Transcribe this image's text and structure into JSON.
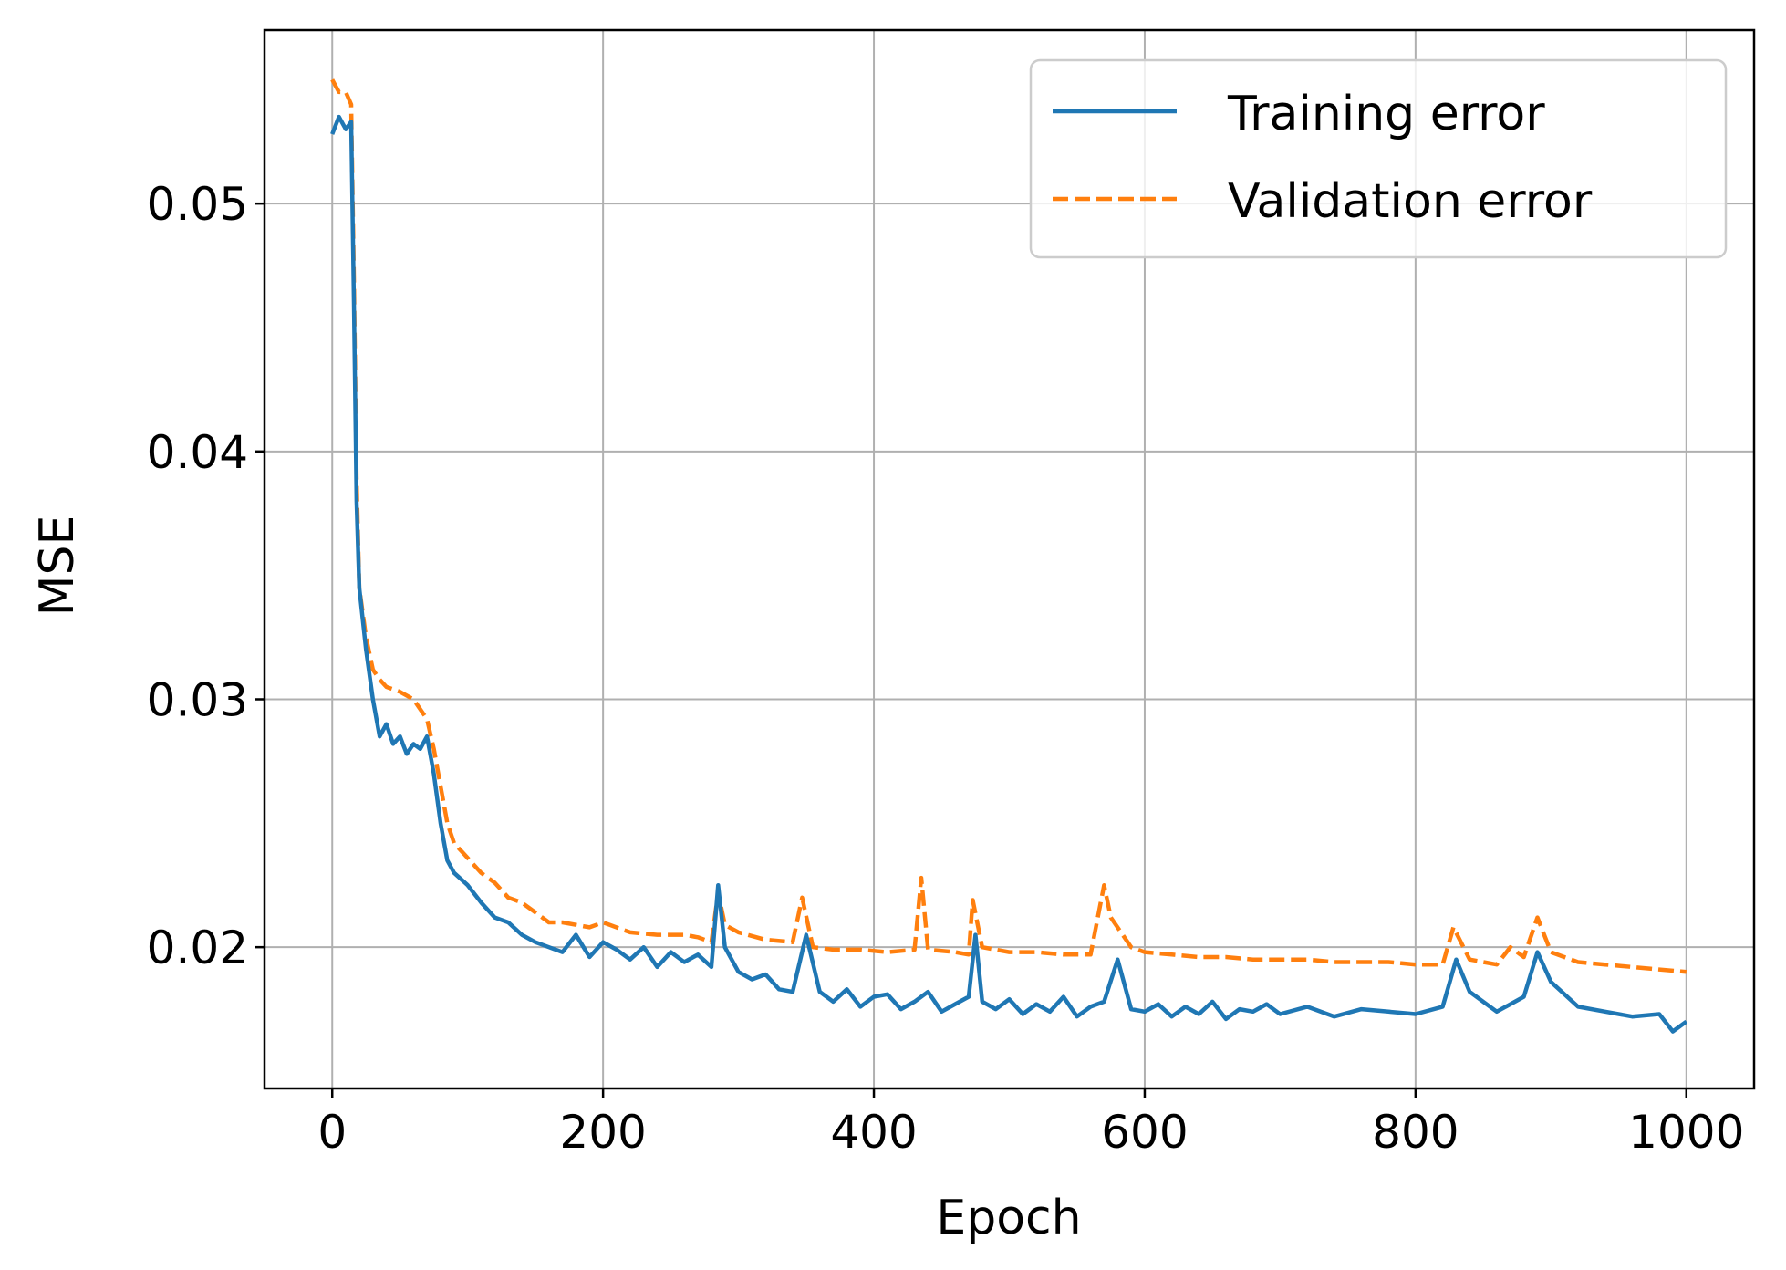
{
  "chart_data": {
    "type": "line",
    "title": "",
    "xlabel": "Epoch",
    "ylabel": "MSE",
    "xlim": [
      -50,
      1050
    ],
    "ylim": [
      0.0143,
      0.057
    ],
    "x_ticks": [
      0,
      200,
      400,
      600,
      800,
      1000
    ],
    "x_tick_labels": [
      "0",
      "200",
      "400",
      "600",
      "800",
      "1000"
    ],
    "y_ticks": [
      0.02,
      0.03,
      0.04,
      0.05
    ],
    "y_tick_labels": [
      "0.02",
      "0.03",
      "0.04",
      "0.05"
    ],
    "grid": true,
    "legend_position": "top-right",
    "series": [
      {
        "name": "Training error",
        "color": "#1f77b4",
        "style": "solid",
        "x": [
          0,
          5,
          10,
          14,
          16,
          18,
          20,
          25,
          30,
          35,
          40,
          45,
          50,
          55,
          60,
          65,
          70,
          75,
          80,
          85,
          90,
          100,
          110,
          120,
          130,
          140,
          150,
          160,
          170,
          180,
          190,
          200,
          210,
          220,
          230,
          240,
          250,
          260,
          270,
          280,
          285,
          290,
          300,
          310,
          320,
          330,
          340,
          350,
          360,
          370,
          380,
          390,
          400,
          410,
          420,
          430,
          440,
          450,
          460,
          470,
          475,
          480,
          490,
          500,
          510,
          520,
          530,
          540,
          550,
          560,
          570,
          580,
          590,
          600,
          610,
          620,
          630,
          640,
          650,
          660,
          670,
          680,
          690,
          700,
          720,
          740,
          760,
          780,
          800,
          820,
          830,
          840,
          860,
          880,
          890,
          900,
          920,
          940,
          960,
          980,
          990,
          1000
        ],
        "y": [
          0.0528,
          0.0535,
          0.053,
          0.0533,
          0.046,
          0.038,
          0.0345,
          0.032,
          0.03,
          0.0285,
          0.029,
          0.0282,
          0.0285,
          0.0278,
          0.0282,
          0.028,
          0.0285,
          0.027,
          0.025,
          0.0235,
          0.023,
          0.0225,
          0.0218,
          0.0212,
          0.021,
          0.0205,
          0.0202,
          0.02,
          0.0198,
          0.0205,
          0.0196,
          0.0202,
          0.0199,
          0.0195,
          0.02,
          0.0192,
          0.0198,
          0.0194,
          0.0197,
          0.0192,
          0.0225,
          0.02,
          0.019,
          0.0187,
          0.0189,
          0.0183,
          0.0182,
          0.0205,
          0.0182,
          0.0178,
          0.0183,
          0.0176,
          0.018,
          0.0181,
          0.0175,
          0.0178,
          0.0182,
          0.0174,
          0.0177,
          0.018,
          0.0205,
          0.0178,
          0.0175,
          0.0179,
          0.0173,
          0.0177,
          0.0174,
          0.018,
          0.0172,
          0.0176,
          0.0178,
          0.0195,
          0.0175,
          0.0174,
          0.0177,
          0.0172,
          0.0176,
          0.0173,
          0.0178,
          0.0171,
          0.0175,
          0.0174,
          0.0177,
          0.0173,
          0.0176,
          0.0172,
          0.0175,
          0.0174,
          0.0173,
          0.0176,
          0.0195,
          0.0182,
          0.0174,
          0.018,
          0.0198,
          0.0186,
          0.0176,
          0.0174,
          0.0172,
          0.0173,
          0.0166,
          0.017
        ]
      },
      {
        "name": "Validation error",
        "color": "#ff7f0e",
        "style": "dashed",
        "x": [
          0,
          5,
          10,
          14,
          16,
          18,
          20,
          25,
          30,
          35,
          40,
          50,
          60,
          70,
          75,
          80,
          85,
          90,
          100,
          110,
          120,
          130,
          140,
          150,
          160,
          170,
          180,
          190,
          200,
          220,
          240,
          260,
          270,
          280,
          285,
          290,
          300,
          320,
          340,
          347,
          355,
          370,
          390,
          410,
          430,
          435,
          440,
          460,
          470,
          473,
          480,
          500,
          520,
          540,
          560,
          570,
          575,
          590,
          600,
          620,
          640,
          660,
          680,
          700,
          720,
          740,
          760,
          780,
          800,
          820,
          828,
          840,
          860,
          870,
          880,
          890,
          900,
          920,
          940,
          960,
          980,
          1000
        ],
        "y": [
          0.055,
          0.0545,
          0.0545,
          0.054,
          0.047,
          0.039,
          0.0345,
          0.0325,
          0.0312,
          0.0308,
          0.0305,
          0.0303,
          0.03,
          0.0292,
          0.028,
          0.0265,
          0.025,
          0.0242,
          0.0236,
          0.023,
          0.0226,
          0.022,
          0.0218,
          0.0214,
          0.021,
          0.021,
          0.0209,
          0.0208,
          0.021,
          0.0206,
          0.0205,
          0.0205,
          0.0204,
          0.0202,
          0.0222,
          0.0209,
          0.0206,
          0.0203,
          0.0202,
          0.022,
          0.02,
          0.0199,
          0.0199,
          0.0198,
          0.0199,
          0.0228,
          0.0199,
          0.0198,
          0.0197,
          0.0219,
          0.02,
          0.0198,
          0.0198,
          0.0197,
          0.0197,
          0.0225,
          0.0212,
          0.02,
          0.0198,
          0.0197,
          0.0196,
          0.0196,
          0.0195,
          0.0195,
          0.0195,
          0.0194,
          0.0194,
          0.0194,
          0.0193,
          0.0193,
          0.0208,
          0.0195,
          0.0193,
          0.02,
          0.0196,
          0.0212,
          0.0198,
          0.0194,
          0.0193,
          0.0192,
          0.0191,
          0.019
        ]
      }
    ]
  }
}
